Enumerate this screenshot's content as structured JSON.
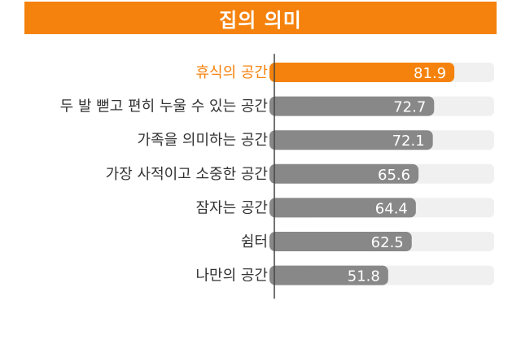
{
  "title": "집의 의미",
  "colors": {
    "title_bg": "#f5820c",
    "highlight": "#f5820c",
    "bar": "#888888",
    "track": "#f0f0f0",
    "label_default": "#333333",
    "axis": "#444444"
  },
  "chart_data": {
    "type": "bar",
    "orientation": "horizontal",
    "title": "집의 의미",
    "categories": [
      "휴식의 공간",
      "두 발 뻗고 편히 누울 수 있는 공간",
      "가족을 의미하는 공간",
      "가장 사적이고 소중한 공간",
      "잠자는 공간",
      "쉼터",
      "나만의 공간"
    ],
    "values": [
      81.9,
      72.7,
      72.1,
      65.6,
      64.4,
      62.5,
      51.8
    ],
    "highlight_index": 0,
    "xlim": [
      0,
      100
    ],
    "grid": false,
    "legend": "none"
  }
}
